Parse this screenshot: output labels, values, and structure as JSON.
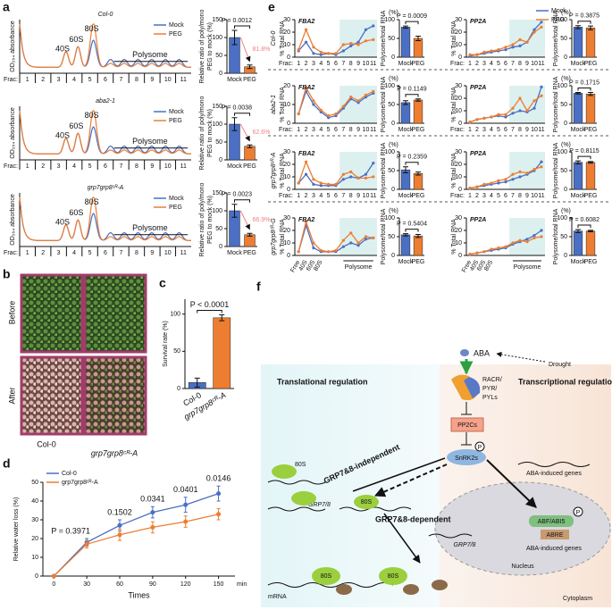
{
  "panel_letters": [
    "a",
    "b",
    "c",
    "d",
    "e",
    "f"
  ],
  "photos": {
    "rows": [
      "Before",
      "After"
    ],
    "columns": [
      "Col-0",
      "grp7grp8ᶜᴿ-A"
    ]
  },
  "diagram": {
    "aba": "ABA",
    "drought": "Drought",
    "receptor": [
      "RACR/",
      "PYR/",
      "PYLs"
    ],
    "pp2c": "PP2Cs",
    "snrk": "SnRK2s",
    "phospho": "P",
    "left_title": "Translational regulation",
    "right_title": "Transcriptional regulation",
    "independent": "GRP7&8-independent",
    "dependent": "GRP7&8-dependent",
    "ribosome": "80S",
    "grp": "GRP7/8",
    "induced": "ABA-induced genes",
    "abf": "ABF/ABI5",
    "abre": "ABRE",
    "nucleus": "Nucleus",
    "mrna": "mRNA",
    "cytoplasm": "Cytoplasm"
  },
  "chart_data": [
    {
      "type": "profile",
      "title": "Col-0",
      "categories": [
        1,
        2,
        3,
        4,
        5,
        6,
        7,
        8,
        9,
        10,
        11
      ],
      "xlabel": "Frac:",
      "ylabel": "OD₂₅₄ absorbance",
      "series": [
        {
          "name": "Mock",
          "color": "#4a6fc4"
        },
        {
          "name": "PEG",
          "color": "#ed7d31"
        }
      ],
      "peak_labels": [
        "40S",
        "60S",
        "80S"
      ],
      "polysome_label": "Polysome",
      "legend": "upper right"
    },
    {
      "type": "bar",
      "categories": [
        "Mock",
        "PEG"
      ],
      "values": [
        100,
        18
      ],
      "errors": [
        20,
        5
      ],
      "colors": [
        "#4a6fc4",
        "#ed7d31"
      ],
      "ylim": [
        0,
        150
      ],
      "yticks": [
        0,
        50,
        100,
        150
      ],
      "ylabel": [
        "Relative ratio of poly/mono",
        "PEG to mock (%)"
      ],
      "p_value": "P = 0.0012",
      "annotation": "81.8%"
    },
    {
      "type": "profile",
      "title": "aba2-1",
      "categories": [
        1,
        2,
        3,
        4,
        5,
        6,
        7,
        8,
        9,
        10,
        11
      ],
      "xlabel": "Frac:",
      "ylabel": "OD₂₅₄ absorbance",
      "series": [
        {
          "name": "Mock",
          "color": "#4a6fc4"
        },
        {
          "name": "PEG",
          "color": "#ed7d31"
        }
      ],
      "peak_labels": [
        "40S",
        "60S",
        "80S"
      ],
      "polysome_label": "Polysome",
      "legend": "upper right"
    },
    {
      "type": "bar",
      "categories": [
        "Mock",
        "PEG"
      ],
      "values": [
        100,
        38
      ],
      "errors": [
        18,
        4
      ],
      "colors": [
        "#4a6fc4",
        "#ed7d31"
      ],
      "ylim": [
        0,
        150
      ],
      "yticks": [
        0,
        50,
        100,
        150
      ],
      "ylabel": [
        "Relative ratio of poly/mono",
        "PEG to mock (%)"
      ],
      "p_value": "P = 0.0038",
      "annotation": "62.6%"
    },
    {
      "type": "profile",
      "title": "grp7grp8ᶜᴿ-A",
      "categories": [
        1,
        2,
        3,
        4,
        5,
        6,
        7,
        8,
        9,
        10,
        11
      ],
      "xlabel": "Frac:",
      "ylabel": "OD₂₅₄ absorbance",
      "series": [
        {
          "name": "Mock",
          "color": "#4a6fc4"
        },
        {
          "name": "PEG",
          "color": "#ed7d31"
        }
      ],
      "peak_labels": [
        "40S",
        "60S",
        "80S"
      ],
      "polysome_label": "Polysome",
      "legend": "upper right"
    },
    {
      "type": "bar",
      "categories": [
        "Mock",
        "PEG"
      ],
      "values": [
        100,
        33
      ],
      "errors": [
        18,
        4
      ],
      "colors": [
        "#4a6fc4",
        "#ed7d31"
      ],
      "ylim": [
        0,
        150
      ],
      "yticks": [
        0,
        50,
        100,
        150
      ],
      "ylabel": [
        "Relative ratio of poly/mono",
        "PEG to mock (%)"
      ],
      "p_value": "P = 0.0023",
      "annotation": "66.9%"
    },
    {
      "type": "line",
      "title": "FBA2",
      "row_label": "Col-0",
      "categories": [
        1,
        2,
        3,
        4,
        5,
        6,
        7,
        8,
        9,
        10,
        11
      ],
      "xlabel": "Frac:",
      "ylabel": "% Total RNA",
      "ylim": [
        0,
        30
      ],
      "yticks": [
        0,
        10,
        20,
        30
      ],
      "series": [
        {
          "name": "Mock",
          "color": "#4a6fc4",
          "values": [
            5,
            12,
            3,
            2,
            3,
            2,
            5,
            9,
            12,
            22,
            25
          ]
        },
        {
          "name": "PEG",
          "color": "#ed7d31",
          "values": [
            6,
            22,
            8,
            4,
            3,
            3,
            10,
            11,
            10,
            13,
            14
          ]
        }
      ]
    },
    {
      "type": "bar",
      "categories": [
        "Mock",
        "PEG"
      ],
      "values": [
        80,
        50
      ],
      "errors": [
        3,
        6
      ],
      "colors": [
        "#4a6fc4",
        "#ed7d31"
      ],
      "ylim": [
        0,
        100
      ],
      "yticks": [
        0,
        50,
        100
      ],
      "ylabel": "Polysome/total RNA",
      "y_unit": "(%)",
      "p_value": "P = 0.0009"
    },
    {
      "type": "line",
      "title": "PP2A",
      "categories": [
        1,
        2,
        3,
        4,
        5,
        6,
        7,
        8,
        9,
        10,
        11
      ],
      "xlabel": "Frac:",
      "ylabel": "% Total RNA",
      "ylim": [
        0,
        30
      ],
      "yticks": [
        0,
        10,
        20,
        30
      ],
      "legend": "above",
      "series": [
        {
          "name": "Mock",
          "color": "#4a6fc4",
          "values": [
            1,
            2,
            3,
            4,
            5,
            6,
            8,
            9,
            12,
            22,
            28
          ]
        },
        {
          "name": "PEG",
          "color": "#ed7d31",
          "values": [
            2,
            2,
            4,
            5,
            6,
            8,
            10,
            14,
            12,
            20,
            24
          ]
        }
      ]
    },
    {
      "type": "bar",
      "categories": [
        "Mock",
        "PEG"
      ],
      "values": [
        80,
        78
      ],
      "errors": [
        4,
        5
      ],
      "colors": [
        "#4a6fc4",
        "#ed7d31"
      ],
      "ylim": [
        0,
        100
      ],
      "yticks": [
        0,
        50,
        100
      ],
      "ylabel": "Polysome/total RNA",
      "y_unit": "(%)",
      "p_value": "P = 0.3875"
    },
    {
      "type": "line",
      "title": "FBA2",
      "row_label": "aba2-1",
      "categories": [
        1,
        2,
        3,
        4,
        5,
        6,
        7,
        8,
        9,
        10,
        11
      ],
      "xlabel": "Frac:",
      "ylabel": "% Total RNA",
      "ylim": [
        0,
        20
      ],
      "yticks": [
        0,
        10,
        20
      ],
      "series": [
        {
          "name": "Mock",
          "color": "#4a6fc4",
          "values": [
            5,
            17,
            10,
            6,
            3,
            4,
            8,
            13,
            11,
            14,
            16
          ]
        },
        {
          "name": "PEG",
          "color": "#ed7d31",
          "values": [
            5,
            19,
            12,
            7,
            4,
            5,
            9,
            14,
            12,
            15,
            17
          ]
        }
      ]
    },
    {
      "type": "bar",
      "categories": [
        "Mock",
        "PEG"
      ],
      "values": [
        55,
        62
      ],
      "errors": [
        5,
        3
      ],
      "colors": [
        "#4a6fc4",
        "#ed7d31"
      ],
      "ylim": [
        0,
        100
      ],
      "yticks": [
        0,
        50,
        100
      ],
      "ylabel": "Polysome/total RNA",
      "y_unit": "(%)",
      "p_value": "P = 0.1149"
    },
    {
      "type": "line",
      "title": "PP2A",
      "categories": [
        1,
        2,
        3,
        4,
        5,
        6,
        7,
        8,
        9,
        10,
        11
      ],
      "xlabel": "Frac:",
      "ylabel": "% Total RNA",
      "ylim": [
        0,
        30
      ],
      "yticks": [
        0,
        10,
        20,
        30
      ],
      "series": [
        {
          "name": "Mock",
          "color": "#4a6fc4",
          "values": [
            1,
            3,
            4,
            5,
            6,
            5,
            8,
            10,
            9,
            12,
            29
          ]
        },
        {
          "name": "PEG",
          "color": "#ed7d31",
          "values": [
            1,
            3,
            4,
            5,
            7,
            7,
            12,
            20,
            10,
            18,
            22
          ]
        }
      ]
    },
    {
      "type": "bar",
      "categories": [
        "Mock",
        "PEG"
      ],
      "values": [
        80,
        78
      ],
      "errors": [
        2,
        4
      ],
      "colors": [
        "#4a6fc4",
        "#ed7d31"
      ],
      "ylim": [
        0,
        100
      ],
      "yticks": [
        0,
        50,
        100
      ],
      "ylabel": "Polysome/total RNA",
      "y_unit": "(%)",
      "p_value": "P = 0.1715"
    },
    {
      "type": "line",
      "title": "FBA2",
      "row_label": "grp7grp8ᶜᴿ-A",
      "categories": [
        1,
        2,
        3,
        4,
        5,
        6,
        7,
        8,
        9,
        10,
        11
      ],
      "xlabel": "Frac:",
      "ylabel": "% Total RNA",
      "ylim": [
        0,
        30
      ],
      "yticks": [
        0,
        10,
        20,
        30
      ],
      "series": [
        {
          "name": "Mock",
          "color": "#4a6fc4",
          "values": [
            5,
            12,
            4,
            3,
            3,
            3,
            8,
            10,
            9,
            12,
            21
          ]
        },
        {
          "name": "PEG",
          "color": "#ed7d31",
          "values": [
            5,
            22,
            8,
            5,
            4,
            4,
            12,
            14,
            9,
            9,
            10
          ]
        }
      ]
    },
    {
      "type": "bar",
      "categories": [
        "Mock",
        "PEG"
      ],
      "values": [
        52,
        42
      ],
      "errors": [
        8,
        4
      ],
      "colors": [
        "#4a6fc4",
        "#ed7d31"
      ],
      "ylim": [
        0,
        100
      ],
      "yticks": [
        0,
        50,
        100
      ],
      "ylabel": "Polysome/total RNA",
      "y_unit": "(%)",
      "p_value": "P = 0.2359"
    },
    {
      "type": "line",
      "title": "PP2A",
      "categories": [
        1,
        2,
        3,
        4,
        5,
        6,
        7,
        8,
        9,
        10,
        11
      ],
      "xlabel": "Frac:",
      "ylabel": "% Total RNA",
      "ylim": [
        0,
        30
      ],
      "yticks": [
        0,
        10,
        20,
        30
      ],
      "series": [
        {
          "name": "Mock",
          "color": "#4a6fc4",
          "values": [
            1,
            2,
            3,
            4,
            5,
            6,
            8,
            10,
            12,
            15,
            22
          ]
        },
        {
          "name": "PEG",
          "color": "#ed7d31",
          "values": [
            1,
            2,
            4,
            5,
            7,
            8,
            12,
            14,
            13,
            16,
            18
          ]
        }
      ]
    },
    {
      "type": "bar",
      "categories": [
        "Mock",
        "PEG"
      ],
      "values": [
        72,
        72
      ],
      "errors": [
        4,
        2
      ],
      "colors": [
        "#4a6fc4",
        "#ed7d31"
      ],
      "ylim": [
        0,
        100
      ],
      "yticks": [
        0,
        50,
        100
      ],
      "ylabel": "Polysome/total RNA",
      "y_unit": "(%)",
      "p_value": "P = 0.8115"
    },
    {
      "type": "line",
      "title": "FBA2",
      "row_label": "grp7grp8ᶜᴿ-G",
      "categories": [
        null,
        null,
        null,
        null,
        null,
        null,
        null,
        null,
        null,
        null,
        null
      ],
      "fraction_labels": [
        "Free",
        "40S",
        "60S",
        "80S"
      ],
      "polysome_label": "Polysome",
      "ylabel": "% Total RNA",
      "ylim": [
        0,
        30
      ],
      "yticks": [
        0,
        10,
        20,
        30
      ],
      "series": [
        {
          "name": "Mock",
          "color": "#4a6fc4",
          "values": [
            3,
            24,
            6,
            3,
            3,
            3,
            7,
            10,
            8,
            13,
            14
          ]
        },
        {
          "name": "PEG",
          "color": "#ed7d31",
          "values": [
            3,
            27,
            10,
            4,
            3,
            4,
            12,
            18,
            10,
            15,
            14
          ]
        }
      ]
    },
    {
      "type": "bar",
      "categories": [
        "Mock",
        "PEG"
      ],
      "values": [
        55,
        52
      ],
      "errors": [
        3,
        4
      ],
      "colors": [
        "#4a6fc4",
        "#ed7d31"
      ],
      "ylim": [
        0,
        100
      ],
      "yticks": [
        0,
        50,
        100
      ],
      "ylabel": "Polysome/total RNA",
      "y_unit": "(%)",
      "p_value": "P = 0.5404"
    },
    {
      "type": "line",
      "title": "PP2A",
      "categories": [
        null,
        null,
        null,
        null,
        null,
        null,
        null,
        null,
        null,
        null,
        null
      ],
      "fraction_labels": [
        "Free",
        "40S",
        "60S",
        "80S"
      ],
      "polysome_label": "Polysome",
      "ylabel": "% Total RNA",
      "ylim": [
        0,
        30
      ],
      "yticks": [
        0,
        10,
        20,
        30
      ],
      "series": [
        {
          "name": "Mock",
          "color": "#4a6fc4",
          "values": [
            1,
            2,
            3,
            4,
            5,
            6,
            9,
            11,
            13,
            16,
            20
          ]
        },
        {
          "name": "PEG",
          "color": "#ed7d31",
          "values": [
            1,
            2,
            3,
            5,
            6,
            7,
            10,
            12,
            11,
            14,
            15
          ]
        }
      ]
    },
    {
      "type": "bar",
      "categories": [
        "Mock",
        "PEG"
      ],
      "values": [
        65,
        65
      ],
      "errors": [
        4,
        2
      ],
      "colors": [
        "#4a6fc4",
        "#ed7d31"
      ],
      "ylim": [
        0,
        100
      ],
      "yticks": [
        0,
        50,
        100
      ],
      "ylabel": "Polysome/total RNA",
      "y_unit": "(%)",
      "p_value": "P = 0.6082"
    },
    {
      "type": "bar",
      "categories": [
        "Col-0",
        "grp7grp8ᶜᴿ-A"
      ],
      "values": [
        8,
        95
      ],
      "errors": [
        6,
        4
      ],
      "colors": [
        "#4a6fc4",
        "#ed7d31"
      ],
      "ylim": [
        0,
        120
      ],
      "yticks": [
        0,
        50,
        100
      ],
      "ylabel": "Survival rate (%)",
      "p_value": "P < 0.0001"
    },
    {
      "type": "line",
      "x": [
        0,
        30,
        60,
        90,
        120,
        150
      ],
      "xlim": [
        -10,
        165
      ],
      "xticks": [
        0,
        30,
        60,
        90,
        120,
        150
      ],
      "x_unit": "min",
      "xlabel": "Times",
      "ylim": [
        0,
        50
      ],
      "yticks": [
        0,
        10,
        20,
        30,
        40,
        50
      ],
      "ylabel": "Relative water loss (%)",
      "legend": "upper left",
      "series": [
        {
          "name": "Col-0",
          "color": "#4a6fc4",
          "values": [
            0,
            18,
            27,
            34,
            38,
            44
          ],
          "errors": [
            0,
            2,
            3,
            3,
            4,
            4
          ]
        },
        {
          "name": "grp7grp8ᶜᴿ-A",
          "color": "#ed7d31",
          "values": [
            0,
            17,
            22,
            26,
            29,
            33
          ],
          "errors": [
            0,
            2,
            3,
            3,
            3,
            3
          ]
        }
      ],
      "p_labels": [
        "P = 0.3971",
        "0.1502",
        "0.0341",
        "0.0401",
        "0.0146"
      ]
    }
  ]
}
